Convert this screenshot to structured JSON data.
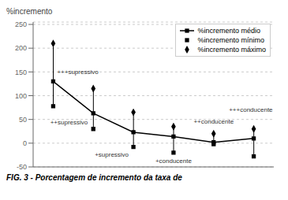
{
  "chart_data": {
    "type": "line",
    "categories": [
      "+++supressivo",
      "++supressivo",
      "+supressivo",
      "+conducente",
      "++conducente",
      "+++conducente"
    ],
    "series": [
      {
        "name": "%incremento médio",
        "type": "line",
        "color": "#000000",
        "marker": "square",
        "line_style": "solid",
        "values": [
          130,
          63,
          23,
          14,
          2,
          10
        ]
      },
      {
        "name": "%incremento mínimo",
        "type": "scatter",
        "color": "#000000",
        "marker": "square",
        "values": [
          78,
          30,
          -8,
          -20,
          -2,
          -28
        ]
      },
      {
        "name": "%incremento máximo",
        "type": "scatter",
        "color": "#000000",
        "marker": "diamond",
        "values": [
          210,
          115,
          65,
          35,
          20,
          30
        ]
      }
    ],
    "y_label": "%incremento",
    "caption": "FIG. 3 - Porcentagem de incremento da taxa de",
    "ylim": [
      -50,
      255
    ],
    "yticks": [
      -50,
      0,
      50,
      100,
      150,
      200,
      250
    ],
    "grid": true,
    "legend": "upper right",
    "tick_labels": "y"
  }
}
